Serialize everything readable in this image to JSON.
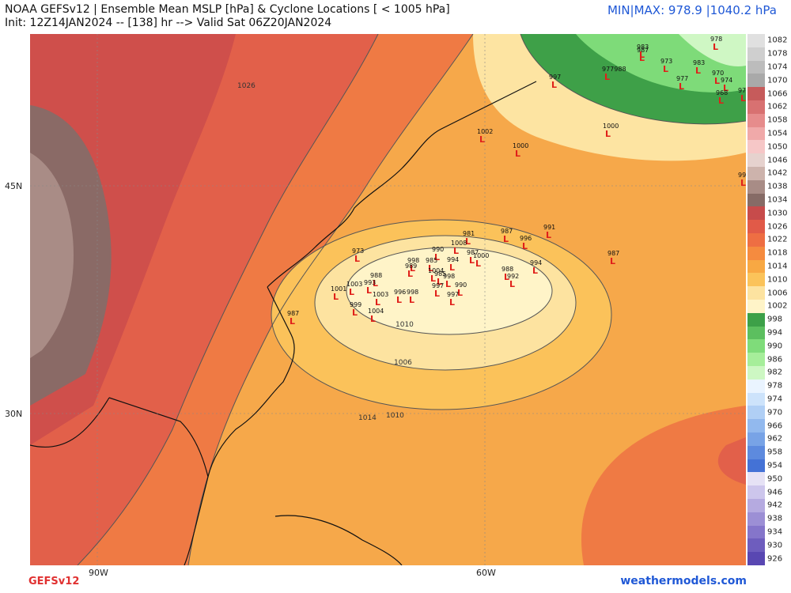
{
  "header": {
    "title": "NOAA GEFSv12 | Ensemble Mean MSLP [hPa] & Cyclone Locations [ < 1005 hPa]",
    "init": "Init: 12Z14JAN2024 -- [138] hr --> Valid Sat 06Z20JAN2024",
    "minmax": "MIN|MAX: 978.9 |1040.2 hPa"
  },
  "footer": {
    "model": "GEFSv12",
    "site": "weathermodels.com"
  },
  "axes": {
    "lat_labels": [
      "45N",
      "30N"
    ],
    "lon_labels": [
      "90W",
      "60W"
    ]
  },
  "colorbar": {
    "levels": [
      "1082",
      "1078",
      "1074",
      "1070",
      "1066",
      "1062",
      "1058",
      "1054",
      "1050",
      "1046",
      "1042",
      "1038",
      "1034",
      "1030",
      "1026",
      "1022",
      "1018",
      "1014",
      "1010",
      "1006",
      "1002",
      "998",
      "994",
      "990",
      "986",
      "982",
      "978",
      "974",
      "970",
      "966",
      "962",
      "958",
      "954",
      "950",
      "946",
      "942",
      "938",
      "934",
      "930",
      "926"
    ],
    "colors": [
      "#e0e0e0",
      "#cfcfcf",
      "#bcbcbc",
      "#a9a9a9",
      "#c65b5b",
      "#d87171",
      "#e68c8c",
      "#f0a9a9",
      "#f6c7c7",
      "#e6d2ce",
      "#cdb3ac",
      "#a88c86",
      "#866b66",
      "#c74b4b",
      "#e15a48",
      "#ee6e43",
      "#f58b3f",
      "#f8a843",
      "#fbc35a",
      "#fde3a0",
      "#fff4c8",
      "#3da048",
      "#5cbf5f",
      "#7fdc7a",
      "#a6ee9a",
      "#cdf7c3",
      "#eaf4ff",
      "#cde3fb",
      "#b0cff5",
      "#92b9ee",
      "#78a3e6",
      "#5d8ade",
      "#4472d6",
      "#e6e2f5",
      "#cdc6ec",
      "#b5aae0",
      "#9c8fd5",
      "#8575ca",
      "#6e5dbe",
      "#5947b2"
    ]
  },
  "contours": [
    "1026",
    "1010",
    "1006",
    "1010",
    "1014"
  ],
  "cyclones": [
    "983",
    "987",
    "973",
    "978",
    "983",
    "977",
    "970",
    "974",
    "973",
    "968",
    "977988",
    "997",
    "1002",
    "1000",
    "1000",
    "999",
    "973",
    "981",
    "987",
    "991",
    "1008",
    "996",
    "990",
    "985",
    "994",
    "987",
    "1000",
    "998",
    "989",
    "988",
    "1004",
    "985",
    "988",
    "992",
    "994",
    "987",
    "1001",
    "1003",
    "993",
    "997",
    "990",
    "998",
    "996",
    "1003",
    "998",
    "997",
    "999",
    "1004",
    "987"
  ]
}
